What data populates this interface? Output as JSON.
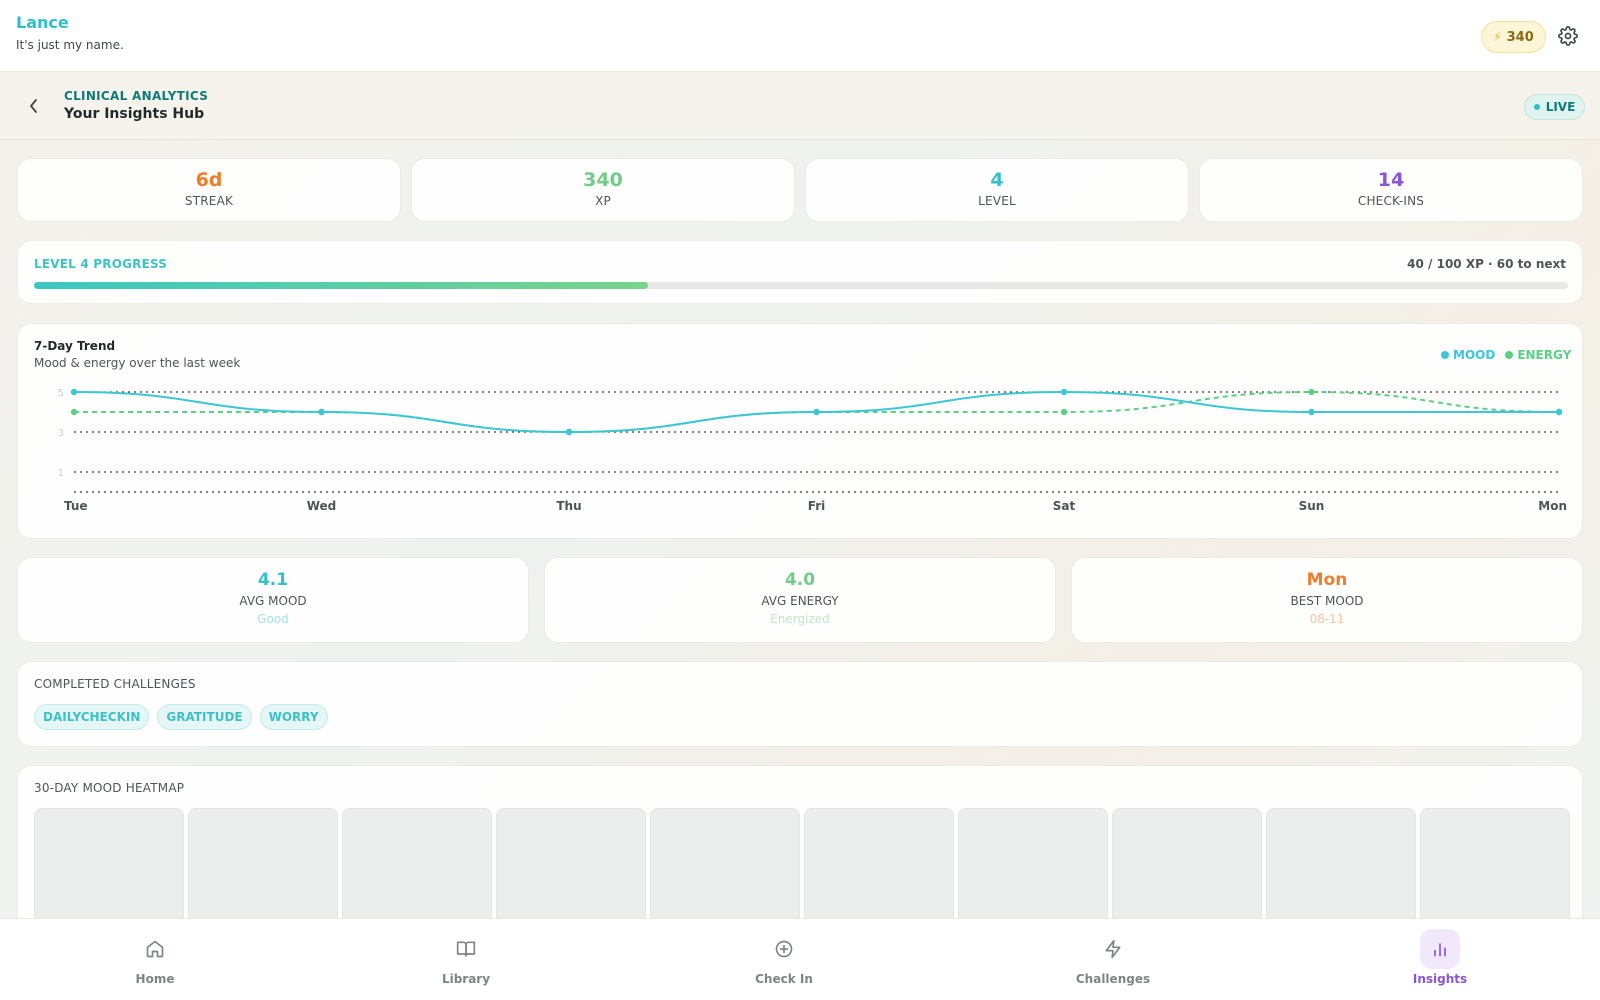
{
  "user": {
    "name": "Lance",
    "tagline": "It's just my name."
  },
  "header": {
    "xp": "340",
    "icons": {
      "xp": "bolt-icon",
      "settings": "gear-icon"
    }
  },
  "subheader": {
    "kicker": "CLINICAL ANALYTICS",
    "title": "Your Insights Hub",
    "live_label": "LIVE",
    "back_icon": "chevron-left-icon"
  },
  "stats": [
    {
      "value": "6d",
      "label": "STREAK",
      "color": "#f07d2c"
    },
    {
      "value": "340",
      "label": "XP",
      "color": "#72cc86"
    },
    {
      "value": "4",
      "label": "LEVEL",
      "color": "#36bfcb"
    },
    {
      "value": "14",
      "label": "CHECK-INS",
      "color": "#8b55d6"
    }
  ],
  "progress": {
    "title": "LEVEL 4 PROGRESS",
    "detail": "40 / 100 XP · 60 to next",
    "fraction": 0.4
  },
  "trend": {
    "title": "7-Day Trend",
    "subtitle": "Mood & energy over the last week",
    "legend": [
      {
        "label": "MOOD",
        "color": "#3cc7d2"
      },
      {
        "label": "ENERGY",
        "color": "#5ccf86"
      }
    ]
  },
  "chart_data": {
    "type": "line",
    "x": [
      "Tue",
      "Wed",
      "Thu",
      "Fri",
      "Sat",
      "Sun",
      "Mon"
    ],
    "y_ticks": [
      "5",
      "3",
      "1"
    ],
    "ylim": [
      0,
      5
    ],
    "grid": true,
    "legend_position": "top-right",
    "series": [
      {
        "name": "MOOD",
        "values": [
          5,
          4,
          3,
          4,
          5,
          4,
          4
        ],
        "color": "#3cc7d2",
        "style": "solid"
      },
      {
        "name": "ENERGY",
        "values": [
          4,
          4,
          3,
          4,
          4,
          5,
          4
        ],
        "color": "#5ccf86",
        "style": "dashed"
      }
    ]
  },
  "averages": [
    {
      "value": "4.1",
      "label": "AVG MOOD",
      "sub": "Good",
      "color": "#36bfcb"
    },
    {
      "value": "4.0",
      "label": "AVG ENERGY",
      "sub": "Energized",
      "color": "#72cc86"
    },
    {
      "value": "Mon",
      "label": "BEST MOOD",
      "sub": "08-11",
      "color": "#f07d2c"
    }
  ],
  "challenges": {
    "title": "COMPLETED CHALLENGES",
    "items": [
      "DAILYCHECKIN",
      "GRATITUDE",
      "WORRY"
    ]
  },
  "heatmap": {
    "title": "30-DAY MOOD HEATMAP"
  },
  "nav": {
    "items": [
      {
        "label": "Home",
        "icon": "home-icon"
      },
      {
        "label": "Library",
        "icon": "book-icon"
      },
      {
        "label": "Check In",
        "icon": "plus-circle-icon"
      },
      {
        "label": "Challenges",
        "icon": "bolt-icon"
      },
      {
        "label": "Insights",
        "icon": "bar-chart-icon",
        "active": true
      }
    ]
  }
}
